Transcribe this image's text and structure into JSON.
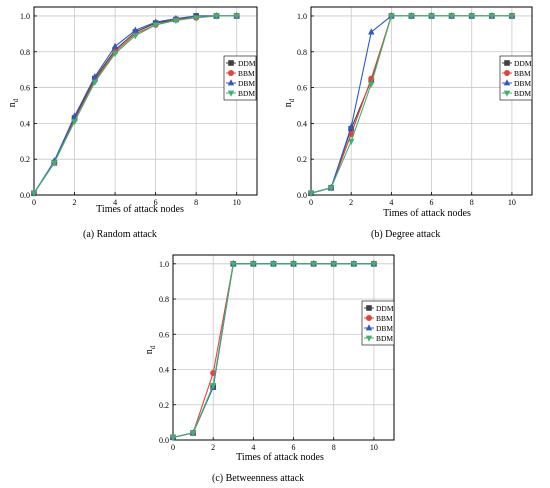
{
  "colors": {
    "DDM": "#404040",
    "BBM": "#e8413a",
    "DBM": "#2f58c8",
    "BDM": "#3cb46e",
    "grid": "#c8c8c8",
    "axis": "#000000"
  },
  "chart_data": [
    {
      "id": "random",
      "type": "line",
      "caption": "(a)  Random attack",
      "xlabel": "Times of attack nodes",
      "ylabel": "n",
      "ylabel_sub": "d",
      "xlim": [
        0,
        11
      ],
      "ylim": [
        0,
        1.05
      ],
      "xticks": [
        "0",
        "2",
        "4",
        "6",
        "8",
        "10"
      ],
      "yticks": [
        "0.0",
        "0.2",
        "0.4",
        "0.6",
        "0.8",
        "1.0"
      ],
      "grid": true,
      "legend_position": "right-middle",
      "x": [
        0,
        1,
        2,
        3,
        4,
        5,
        6,
        7,
        8,
        9,
        10
      ],
      "series": [
        {
          "name": "DDM",
          "marker": "square",
          "values": [
            0.01,
            0.18,
            0.43,
            0.65,
            0.81,
            0.91,
            0.96,
            0.98,
            1.0,
            1.0,
            1.0
          ]
        },
        {
          "name": "BBM",
          "marker": "circle",
          "values": [
            0.01,
            0.18,
            0.42,
            0.64,
            0.8,
            0.9,
            0.95,
            0.98,
            0.99,
            1.0,
            1.0
          ]
        },
        {
          "name": "DBM",
          "marker": "triangle-up",
          "values": [
            0.01,
            0.19,
            0.44,
            0.66,
            0.83,
            0.92,
            0.965,
            0.985,
            1.0,
            1.0,
            1.0
          ]
        },
        {
          "name": "BDM",
          "marker": "triangle-down",
          "values": [
            0.01,
            0.18,
            0.41,
            0.63,
            0.79,
            0.89,
            0.95,
            0.975,
            0.99,
            1.0,
            1.0
          ]
        }
      ]
    },
    {
      "id": "degree",
      "type": "line",
      "caption": "(b)  Degree attack",
      "xlabel": "Times of attack nodes",
      "ylabel": "n",
      "ylabel_sub": "d",
      "xlim": [
        0,
        11
      ],
      "ylim": [
        0,
        1.05
      ],
      "xticks": [
        "0",
        "2",
        "4",
        "6",
        "8",
        "10"
      ],
      "yticks": [
        "0.0",
        "0.2",
        "0.4",
        "0.6",
        "0.8",
        "1.0"
      ],
      "grid": true,
      "legend_position": "right-middle",
      "x": [
        0,
        1,
        2,
        3,
        4,
        5,
        6,
        7,
        8,
        9,
        10
      ],
      "series": [
        {
          "name": "DDM",
          "marker": "square",
          "values": [
            0.01,
            0.04,
            0.37,
            0.64,
            1.0,
            1.0,
            1.0,
            1.0,
            1.0,
            1.0,
            1.0
          ]
        },
        {
          "name": "BBM",
          "marker": "circle",
          "values": [
            0.01,
            0.04,
            0.34,
            0.65,
            1.0,
            1.0,
            1.0,
            1.0,
            1.0,
            1.0,
            1.0
          ]
        },
        {
          "name": "DBM",
          "marker": "triangle-up",
          "values": [
            0.01,
            0.04,
            0.38,
            0.91,
            1.0,
            1.0,
            1.0,
            1.0,
            1.0,
            1.0,
            1.0
          ]
        },
        {
          "name": "BDM",
          "marker": "triangle-down",
          "values": [
            0.01,
            0.04,
            0.3,
            0.62,
            1.0,
            1.0,
            1.0,
            1.0,
            1.0,
            1.0,
            1.0
          ]
        }
      ]
    },
    {
      "id": "betweenness",
      "type": "line",
      "caption": "(c)  Betweenness attack",
      "xlabel": "Times of attack nodes",
      "ylabel": "n",
      "ylabel_sub": "d",
      "xlim": [
        0,
        11
      ],
      "ylim": [
        0,
        1.05
      ],
      "xticks": [
        "0",
        "2",
        "4",
        "6",
        "8",
        "10"
      ],
      "yticks": [
        "0.0",
        "0.2",
        "0.4",
        "0.6",
        "0.8",
        "1.0"
      ],
      "grid": true,
      "legend_position": "right-middle",
      "x": [
        0,
        1,
        2,
        3,
        4,
        5,
        6,
        7,
        8,
        9,
        10
      ],
      "series": [
        {
          "name": "DDM",
          "marker": "square",
          "values": [
            0.015,
            0.04,
            0.3,
            1.0,
            1.0,
            1.0,
            1.0,
            1.0,
            1.0,
            1.0,
            1.0
          ]
        },
        {
          "name": "BBM",
          "marker": "circle",
          "values": [
            0.015,
            0.04,
            0.38,
            1.0,
            1.0,
            1.0,
            1.0,
            1.0,
            1.0,
            1.0,
            1.0
          ]
        },
        {
          "name": "DBM",
          "marker": "triangle-up",
          "values": [
            0.015,
            0.04,
            0.3,
            1.0,
            1.0,
            1.0,
            1.0,
            1.0,
            1.0,
            1.0,
            1.0
          ]
        },
        {
          "name": "BDM",
          "marker": "triangle-down",
          "values": [
            0.015,
            0.04,
            0.31,
            1.0,
            1.0,
            1.0,
            1.0,
            1.0,
            1.0,
            1.0,
            1.0
          ]
        }
      ]
    }
  ]
}
